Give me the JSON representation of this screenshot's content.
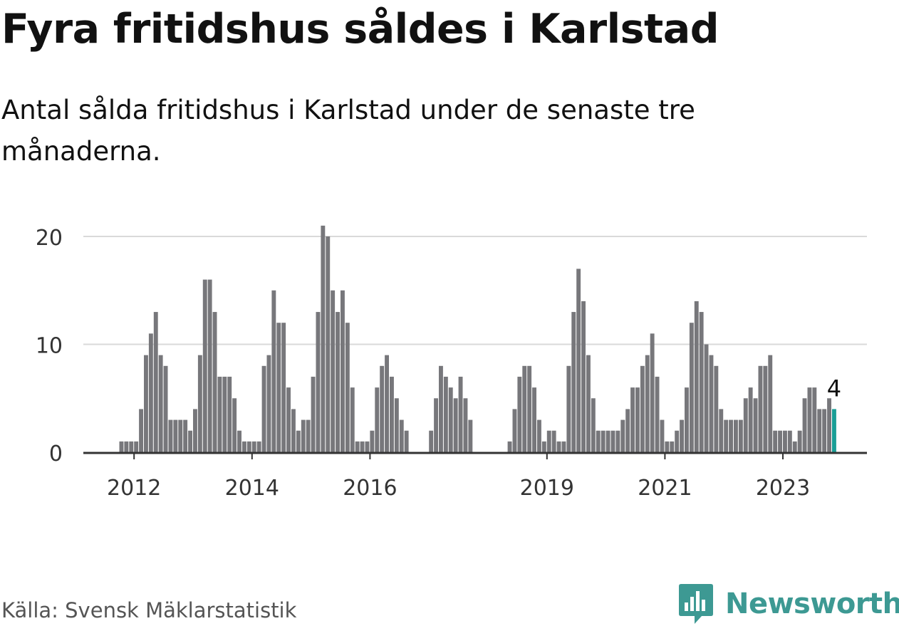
{
  "title": "Fyra fritidshus såldes i Karlstad",
  "subtitle": "Antal sålda fritidshus i Karlstad under de senaste tre månaderna.",
  "source": "Källa: Svensk Mäklarstatistik",
  "brand": "Newsworthy",
  "colors": {
    "bar": "#77777b",
    "highlight": "#1a9e96",
    "grid": "#d9d9d9",
    "axis": "#333333",
    "brand": "#3d9993"
  },
  "chart_data": {
    "type": "bar",
    "title": "Fyra fritidshus såldes i Karlstad",
    "subtitle": "Antal sålda fritidshus i Karlstad under de senaste tre månaderna.",
    "xlabel": "",
    "ylabel": "",
    "ylim": [
      0,
      22
    ],
    "yticks": [
      0,
      10,
      20
    ],
    "xticks": [
      {
        "label": "2012",
        "year": 2012
      },
      {
        "label": "2014",
        "year": 2014
      },
      {
        "label": "2016",
        "year": 2016
      },
      {
        "label": "2019",
        "year": 2019
      },
      {
        "label": "2021",
        "year": 2021
      },
      {
        "label": "2023",
        "year": 2023
      }
    ],
    "grid": true,
    "legend": "none",
    "start": "2011-01",
    "values": [
      0,
      0,
      0,
      0,
      0,
      0,
      0,
      0,
      0,
      1,
      1,
      1,
      1,
      4,
      9,
      11,
      13,
      9,
      8,
      3,
      3,
      3,
      3,
      2,
      4,
      9,
      16,
      16,
      13,
      7,
      7,
      7,
      5,
      2,
      1,
      1,
      1,
      1,
      8,
      9,
      15,
      12,
      12,
      6,
      4,
      2,
      3,
      3,
      7,
      13,
      21,
      20,
      15,
      13,
      15,
      12,
      6,
      1,
      1,
      1,
      2,
      6,
      8,
      9,
      7,
      5,
      3,
      2,
      0,
      0,
      0,
      0,
      2,
      5,
      8,
      7,
      6,
      5,
      7,
      5,
      3,
      0,
      0,
      0,
      0,
      0,
      0,
      0,
      1,
      4,
      7,
      8,
      8,
      6,
      3,
      1,
      2,
      2,
      1,
      1,
      8,
      13,
      17,
      14,
      9,
      5,
      2,
      2,
      2,
      2,
      2,
      3,
      4,
      6,
      6,
      8,
      9,
      11,
      7,
      3,
      1,
      1,
      2,
      3,
      6,
      12,
      14,
      13,
      10,
      9,
      8,
      4,
      3,
      3,
      3,
      3,
      5,
      6,
      5,
      8,
      8,
      9,
      2,
      2,
      2,
      2,
      1,
      2,
      5,
      6,
      6,
      4,
      4,
      5,
      4
    ],
    "highlight_last": true,
    "annotation": "4"
  }
}
